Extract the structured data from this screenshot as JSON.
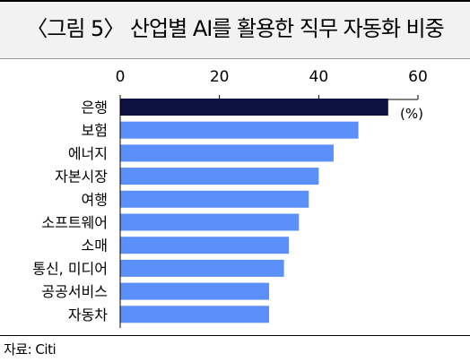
{
  "title": "〈그림 5〉 산업별 AI를 활용한 직무 자동화 비중",
  "source": "자료: Citi",
  "chart_data": {
    "type": "bar",
    "orientation": "horizontal",
    "title": "〈그림 5〉 산업별 AI를 활용한 직무 자동화 비중",
    "unit": "(%)",
    "categories": [
      "은행",
      "보험",
      "에너지",
      "자본시장",
      "여행",
      "소프트웨어",
      "소매",
      "통신, 미디어",
      "공공서비스",
      "자동차"
    ],
    "values": [
      54,
      48,
      43,
      40,
      38,
      36,
      34,
      33,
      30,
      30
    ],
    "xlim": [
      0,
      60
    ],
    "xticks": [
      0,
      20,
      40,
      60
    ],
    "xticks_position": "top",
    "grid": false,
    "colors": {
      "highlight": "#0c1140",
      "default": "#5b8ff9"
    },
    "highlight_index": 0
  }
}
